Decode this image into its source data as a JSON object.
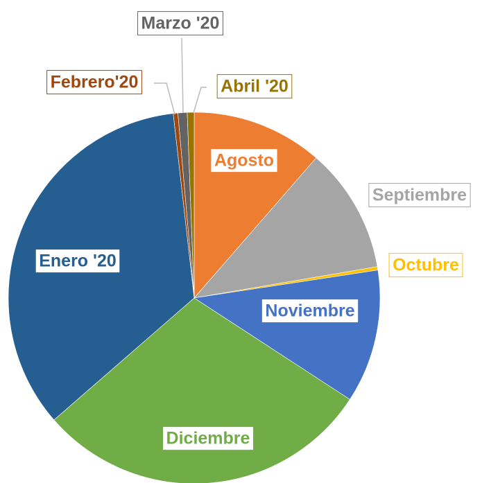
{
  "chart_data": {
    "type": "pie",
    "categories": [
      "Agosto",
      "Septiembre",
      "Octubre",
      "Noviembre",
      "Diciembre",
      "Enero '20",
      "Febrero'20",
      "Marzo '20",
      "Abril '20"
    ],
    "values": [
      11.4,
      10.9,
      0.3,
      11.6,
      29.4,
      34.6,
      0.4,
      0.8,
      0.6
    ],
    "colors": [
      "#ed7d31",
      "#a5a5a5",
      "#ffc000",
      "#4472c4",
      "#70ad47",
      "#255e91",
      "#9e480e",
      "#636363",
      "#997300"
    ]
  }
}
